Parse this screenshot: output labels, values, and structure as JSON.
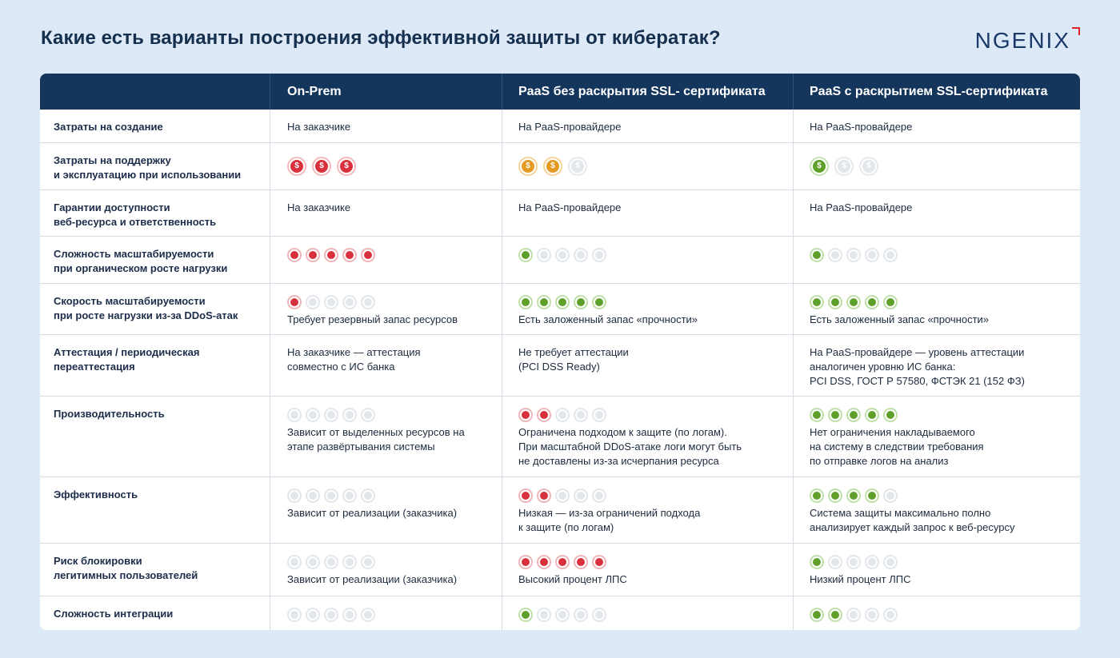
{
  "title": "Какие есть варианты построения эффективной защиты от кибератак?",
  "logo": "NGENIX",
  "colors": {
    "header_bg": "#14365d",
    "page_bg": "#dde9f6",
    "red": "#d9303d",
    "orange": "#e29b23",
    "green": "#5fa02b",
    "gray": "#e3e7ec"
  },
  "headers": [
    "",
    "On-Prem",
    "PaaS без раскрытия SSL- сертификата",
    "PaaS с раскрытием SSL-сертификата"
  ],
  "rows": [
    {
      "label": "Затраты на создание",
      "cells": [
        {
          "text": "На заказчике"
        },
        {
          "text": "На PaaS-провайдере"
        },
        {
          "text": "На PaaS-провайдере"
        }
      ]
    },
    {
      "label": "Затраты на поддержку\nи эксплуатацию при использовании",
      "cells": [
        {
          "coins": [
            "red",
            "red",
            "red"
          ],
          "symbol": "$"
        },
        {
          "coins": [
            "orange",
            "orange",
            "gray"
          ],
          "symbol": "$"
        },
        {
          "coins": [
            "green",
            "gray",
            "gray"
          ],
          "symbol": "$"
        }
      ]
    },
    {
      "label": "Гарантии доступности\nвеб-ресурса и ответственность",
      "cells": [
        {
          "text": "На заказчике"
        },
        {
          "text": "На PaaS-провайдере"
        },
        {
          "text": "На PaaS-провайдере"
        }
      ]
    },
    {
      "label": "Сложность масштабируемости\nпри органическом росте нагрузки",
      "cells": [
        {
          "dots": [
            "red",
            "red",
            "red",
            "red",
            "red"
          ]
        },
        {
          "dots": [
            "green",
            "gray",
            "gray",
            "gray",
            "gray"
          ]
        },
        {
          "dots": [
            "green",
            "gray",
            "gray",
            "gray",
            "gray"
          ]
        }
      ]
    },
    {
      "label": "Скорость масштабируемости\nпри росте нагрузки из-за DDoS-атак",
      "cells": [
        {
          "dots": [
            "red",
            "gray",
            "gray",
            "gray",
            "gray"
          ],
          "text": "Требует резервный запас ресурсов"
        },
        {
          "dots": [
            "green",
            "green",
            "green",
            "green",
            "green"
          ],
          "text": "Есть заложенный запас «прочности»"
        },
        {
          "dots": [
            "green",
            "green",
            "green",
            "green",
            "green"
          ],
          "text": "Есть заложенный запас «прочности»"
        }
      ]
    },
    {
      "label": "Аттестация / периодическая\nпереаттестация",
      "cells": [
        {
          "text": "На заказчике — аттестация\nсовместно с ИС банка"
        },
        {
          "text": "Не требует аттестации\n(PCI DSS Ready)"
        },
        {
          "text": "На PaaS-провайдере — уровень аттестации\nаналогичен уровню ИС банка:\nPCI DSS, ГОСТ Р 57580, ФСТЭК 21 (152 ФЗ)"
        }
      ]
    },
    {
      "label": "Производительность",
      "cells": [
        {
          "dots": [
            "gray",
            "gray",
            "gray",
            "gray",
            "gray"
          ],
          "text": "Зависит от выделенных ресурсов на\nэтапе развёртывания системы"
        },
        {
          "dots": [
            "red",
            "red",
            "gray",
            "gray",
            "gray"
          ],
          "text": "Ограничена подходом к защите (по логам).\nПри масштабной DDoS-атаке логи могут быть\nне доставлены из-за исчерпания ресурса"
        },
        {
          "dots": [
            "green",
            "green",
            "green",
            "green",
            "green"
          ],
          "text": "Нет ограничения накладываемого\nна систему в следствии требования\nпо отправке логов на анализ"
        }
      ]
    },
    {
      "label": "Эффективность",
      "cells": [
        {
          "dots": [
            "gray",
            "gray",
            "gray",
            "gray",
            "gray"
          ],
          "text": "Зависит от реализации (заказчика)"
        },
        {
          "dots": [
            "red",
            "red",
            "gray",
            "gray",
            "gray"
          ],
          "text": "Низкая — из-за ограничений подхода\nк защите (по логам)"
        },
        {
          "dots": [
            "green",
            "green",
            "green",
            "green",
            "gray"
          ],
          "text": "Система защиты максимально полно\nанализирует каждый запрос к веб-ресурсу"
        }
      ]
    },
    {
      "label": "Риск блокировки\nлегитимных пользователей",
      "cells": [
        {
          "dots": [
            "gray",
            "gray",
            "gray",
            "gray",
            "gray"
          ],
          "text": "Зависит от реализации (заказчика)"
        },
        {
          "dots": [
            "red",
            "red",
            "red",
            "red",
            "red"
          ],
          "text": "Высокий процент ЛПС"
        },
        {
          "dots": [
            "green",
            "gray",
            "gray",
            "gray",
            "gray"
          ],
          "text": "Низкий процент ЛПС"
        }
      ]
    },
    {
      "label": "Сложность интеграции",
      "cells": [
        {
          "dots": [
            "gray",
            "gray",
            "gray",
            "gray",
            "gray"
          ]
        },
        {
          "dots": [
            "green",
            "gray",
            "gray",
            "gray",
            "gray"
          ]
        },
        {
          "dots": [
            "green",
            "green",
            "gray",
            "gray",
            "gray"
          ]
        }
      ]
    }
  ]
}
